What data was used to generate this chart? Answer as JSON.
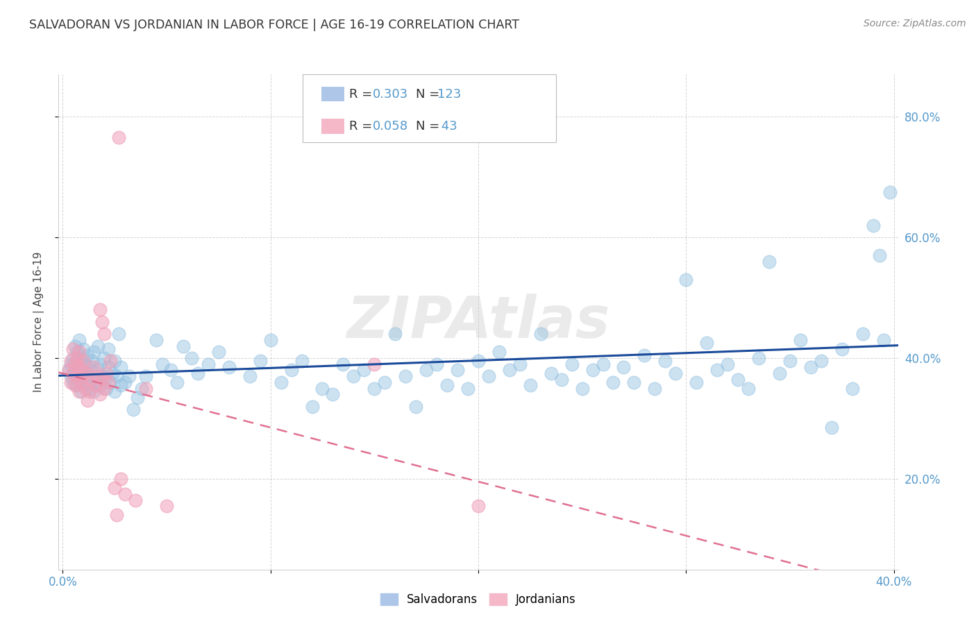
{
  "title": "SALVADORAN VS JORDANIAN IN LABOR FORCE | AGE 16-19 CORRELATION CHART",
  "source": "Source: ZipAtlas.com",
  "ylabel": "In Labor Force | Age 16-19",
  "xlim": [
    -0.002,
    0.402
  ],
  "ylim": [
    0.05,
    0.87
  ],
  "xticks": [
    0.0,
    0.1,
    0.2,
    0.3,
    0.4
  ],
  "xtick_labels": [
    "0.0%",
    "",
    "",
    "",
    "40.0%"
  ],
  "ytick_labels_right": [
    "20.0%",
    "40.0%",
    "60.0%",
    "80.0%"
  ],
  "yticks": [
    0.2,
    0.4,
    0.6,
    0.8
  ],
  "watermark": "ZIPAtlas",
  "blue_color": "#92c0e0",
  "pink_color": "#f0a0b8",
  "blue_line_color": "#1a4a9a",
  "pink_line_color": "#e07090",
  "background_color": "#ffffff",
  "grid_color": "#c8c8c8",
  "title_color": "#333333",
  "tick_label_color": "#5599cc",
  "blue_scatter": [
    [
      0.003,
      0.38
    ],
    [
      0.004,
      0.39
    ],
    [
      0.004,
      0.37
    ],
    [
      0.005,
      0.4
    ],
    [
      0.005,
      0.36
    ],
    [
      0.006,
      0.42
    ],
    [
      0.006,
      0.375
    ],
    [
      0.007,
      0.41
    ],
    [
      0.007,
      0.355
    ],
    [
      0.007,
      0.395
    ],
    [
      0.008,
      0.43
    ],
    [
      0.008,
      0.365
    ],
    [
      0.008,
      0.38
    ],
    [
      0.009,
      0.345
    ],
    [
      0.009,
      0.4
    ],
    [
      0.01,
      0.37
    ],
    [
      0.01,
      0.415
    ],
    [
      0.011,
      0.36
    ],
    [
      0.011,
      0.39
    ],
    [
      0.012,
      0.375
    ],
    [
      0.012,
      0.405
    ],
    [
      0.013,
      0.35
    ],
    [
      0.013,
      0.385
    ],
    [
      0.014,
      0.37
    ],
    [
      0.014,
      0.395
    ],
    [
      0.015,
      0.345
    ],
    [
      0.015,
      0.41
    ],
    [
      0.016,
      0.36
    ],
    [
      0.017,
      0.38
    ],
    [
      0.017,
      0.42
    ],
    [
      0.018,
      0.355
    ],
    [
      0.018,
      0.39
    ],
    [
      0.019,
      0.37
    ],
    [
      0.02,
      0.365
    ],
    [
      0.02,
      0.4
    ],
    [
      0.021,
      0.35
    ],
    [
      0.022,
      0.385
    ],
    [
      0.022,
      0.415
    ],
    [
      0.023,
      0.36
    ],
    [
      0.024,
      0.375
    ],
    [
      0.025,
      0.345
    ],
    [
      0.025,
      0.395
    ],
    [
      0.026,
      0.37
    ],
    [
      0.027,
      0.44
    ],
    [
      0.028,
      0.355
    ],
    [
      0.028,
      0.385
    ],
    [
      0.03,
      0.36
    ],
    [
      0.032,
      0.37
    ],
    [
      0.034,
      0.315
    ],
    [
      0.036,
      0.335
    ],
    [
      0.038,
      0.35
    ],
    [
      0.04,
      0.37
    ],
    [
      0.045,
      0.43
    ],
    [
      0.048,
      0.39
    ],
    [
      0.052,
      0.38
    ],
    [
      0.055,
      0.36
    ],
    [
      0.058,
      0.42
    ],
    [
      0.062,
      0.4
    ],
    [
      0.065,
      0.375
    ],
    [
      0.07,
      0.39
    ],
    [
      0.075,
      0.41
    ],
    [
      0.08,
      0.385
    ],
    [
      0.09,
      0.37
    ],
    [
      0.095,
      0.395
    ],
    [
      0.1,
      0.43
    ],
    [
      0.105,
      0.36
    ],
    [
      0.11,
      0.38
    ],
    [
      0.115,
      0.395
    ],
    [
      0.12,
      0.32
    ],
    [
      0.125,
      0.35
    ],
    [
      0.13,
      0.34
    ],
    [
      0.135,
      0.39
    ],
    [
      0.14,
      0.37
    ],
    [
      0.145,
      0.38
    ],
    [
      0.15,
      0.35
    ],
    [
      0.155,
      0.36
    ],
    [
      0.16,
      0.44
    ],
    [
      0.165,
      0.37
    ],
    [
      0.17,
      0.32
    ],
    [
      0.175,
      0.38
    ],
    [
      0.18,
      0.39
    ],
    [
      0.185,
      0.355
    ],
    [
      0.19,
      0.38
    ],
    [
      0.195,
      0.35
    ],
    [
      0.2,
      0.395
    ],
    [
      0.205,
      0.37
    ],
    [
      0.21,
      0.41
    ],
    [
      0.215,
      0.38
    ],
    [
      0.22,
      0.39
    ],
    [
      0.225,
      0.355
    ],
    [
      0.23,
      0.44
    ],
    [
      0.235,
      0.375
    ],
    [
      0.24,
      0.365
    ],
    [
      0.245,
      0.39
    ],
    [
      0.25,
      0.35
    ],
    [
      0.255,
      0.38
    ],
    [
      0.26,
      0.39
    ],
    [
      0.265,
      0.36
    ],
    [
      0.27,
      0.385
    ],
    [
      0.275,
      0.36
    ],
    [
      0.28,
      0.405
    ],
    [
      0.285,
      0.35
    ],
    [
      0.29,
      0.395
    ],
    [
      0.295,
      0.375
    ],
    [
      0.3,
      0.53
    ],
    [
      0.305,
      0.36
    ],
    [
      0.31,
      0.425
    ],
    [
      0.315,
      0.38
    ],
    [
      0.32,
      0.39
    ],
    [
      0.325,
      0.365
    ],
    [
      0.33,
      0.35
    ],
    [
      0.335,
      0.4
    ],
    [
      0.34,
      0.56
    ],
    [
      0.345,
      0.375
    ],
    [
      0.35,
      0.395
    ],
    [
      0.355,
      0.43
    ],
    [
      0.36,
      0.385
    ],
    [
      0.365,
      0.395
    ],
    [
      0.37,
      0.285
    ],
    [
      0.375,
      0.415
    ],
    [
      0.38,
      0.35
    ],
    [
      0.385,
      0.44
    ],
    [
      0.39,
      0.62
    ],
    [
      0.393,
      0.57
    ],
    [
      0.395,
      0.43
    ],
    [
      0.398,
      0.675
    ]
  ],
  "pink_scatter": [
    [
      0.003,
      0.38
    ],
    [
      0.004,
      0.395
    ],
    [
      0.004,
      0.36
    ],
    [
      0.005,
      0.375
    ],
    [
      0.005,
      0.415
    ],
    [
      0.006,
      0.355
    ],
    [
      0.006,
      0.39
    ],
    [
      0.007,
      0.37
    ],
    [
      0.007,
      0.4
    ],
    [
      0.008,
      0.345
    ],
    [
      0.008,
      0.385
    ],
    [
      0.008,
      0.41
    ],
    [
      0.009,
      0.36
    ],
    [
      0.009,
      0.38
    ],
    [
      0.01,
      0.37
    ],
    [
      0.01,
      0.395
    ],
    [
      0.011,
      0.35
    ],
    [
      0.012,
      0.375
    ],
    [
      0.012,
      0.33
    ],
    [
      0.013,
      0.345
    ],
    [
      0.014,
      0.365
    ],
    [
      0.015,
      0.385
    ],
    [
      0.016,
      0.355
    ],
    [
      0.017,
      0.37
    ],
    [
      0.018,
      0.34
    ],
    [
      0.018,
      0.48
    ],
    [
      0.019,
      0.365
    ],
    [
      0.019,
      0.46
    ],
    [
      0.02,
      0.35
    ],
    [
      0.02,
      0.44
    ],
    [
      0.021,
      0.375
    ],
    [
      0.022,
      0.36
    ],
    [
      0.023,
      0.395
    ],
    [
      0.025,
      0.185
    ],
    [
      0.026,
      0.14
    ],
    [
      0.027,
      0.765
    ],
    [
      0.028,
      0.2
    ],
    [
      0.03,
      0.175
    ],
    [
      0.035,
      0.165
    ],
    [
      0.04,
      0.35
    ],
    [
      0.05,
      0.155
    ],
    [
      0.15,
      0.39
    ],
    [
      0.2,
      0.155
    ]
  ]
}
